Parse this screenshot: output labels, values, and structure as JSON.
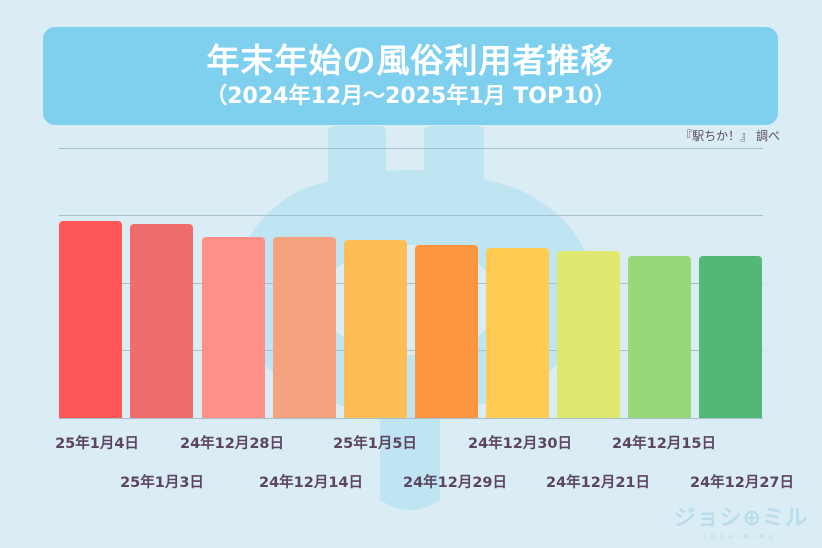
{
  "header": {
    "title": "年末年始の風俗利用者推移",
    "subtitle": "（2024年12月～2025年1月 TOP10）"
  },
  "source": "『駅ちか！』 調べ",
  "logo": {
    "main": "ジョシ⊕ミル",
    "sub": "JOSHIMIRU"
  },
  "colors": {
    "background": "#daedf4",
    "title_box": "#7fd0ee",
    "label_text": "#5c4562",
    "gridline": "#a6c0ca"
  },
  "chart_data": {
    "type": "bar",
    "title": "年末年始の風俗利用者推移",
    "subtitle": "（2024年12月～2025年1月 TOP10）",
    "xlabel": "",
    "ylabel": "",
    "ylim": [
      0,
      100
    ],
    "y_ticks_shown": false,
    "grid": true,
    "gridlines": [
      0,
      25,
      50,
      75,
      100
    ],
    "legend": null,
    "note": "Y axis unlabeled; values are relative heights (% of top gridline).",
    "categories": [
      "25年1月4日",
      "25年1月3日",
      "24年12月28日",
      "24年12月14日",
      "25年1月5日",
      "24年12月29日",
      "24年12月30日",
      "24年12月21日",
      "24年12月15日",
      "24年12月27日"
    ],
    "values": [
      73,
      72,
      67,
      67,
      66,
      64,
      63,
      62,
      60,
      60
    ],
    "bar_colors": [
      "#ff5757",
      "#f06d6d",
      "#ff8f87",
      "#f5a27e",
      "#ffbe55",
      "#fb9540",
      "#ffcb52",
      "#dfe871",
      "#99d878",
      "#52b878"
    ]
  },
  "bars": [
    {
      "label": "25年1月4日",
      "value": 73,
      "color": "#ff5757"
    },
    {
      "label": "25年1月3日",
      "value": 72,
      "color": "#f06d6d"
    },
    {
      "label": "24年12月28日",
      "value": 67,
      "color": "#ff8f87"
    },
    {
      "label": "24年12月14日",
      "value": 67,
      "color": "#f5a27e"
    },
    {
      "label": "25年1月5日",
      "value": 66,
      "color": "#ffbe55"
    },
    {
      "label": "24年12月29日",
      "value": 64,
      "color": "#fb9540"
    },
    {
      "label": "24年12月30日",
      "value": 63,
      "color": "#ffcb52"
    },
    {
      "label": "24年12月21日",
      "value": 62,
      "color": "#dfe871"
    },
    {
      "label": "24年12月15日",
      "value": 60,
      "color": "#99d878"
    },
    {
      "label": "24年12月27日",
      "value": 60,
      "color": "#52b878"
    }
  ]
}
